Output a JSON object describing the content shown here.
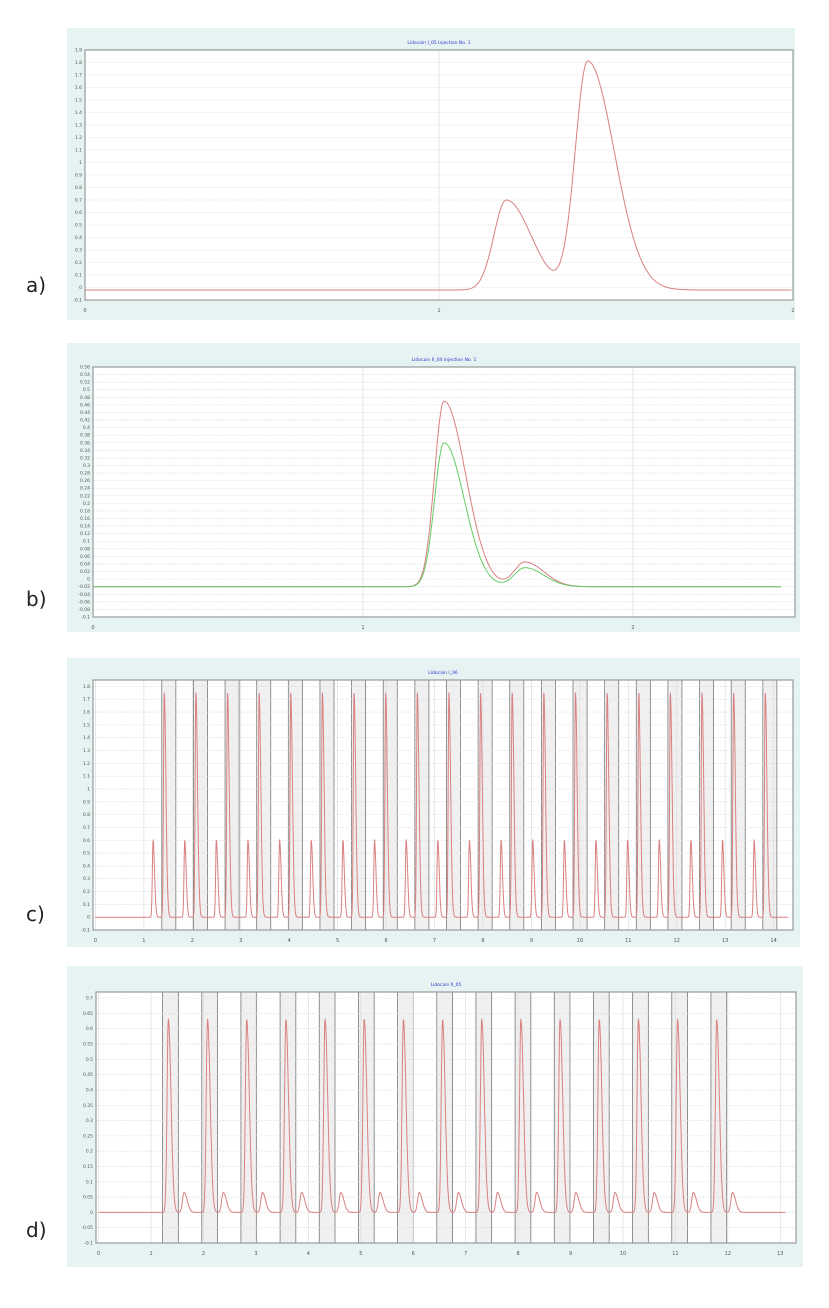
{
  "labels": [
    "a)",
    "b)",
    "c)",
    "d)"
  ],
  "chart_data": [
    {
      "type": "line",
      "title": "Lidocain I_05 Injection No. 1",
      "xlim": [
        0,
        2
      ],
      "ylim": [
        -0.1,
        1.9
      ],
      "xticks": [
        0,
        1,
        2
      ],
      "ytick_step": 0.1,
      "grid": true,
      "series": [
        {
          "name": "trace",
          "color": "#d98080",
          "baseline": -0.02,
          "xrange": [
            0,
            2
          ],
          "peaks": [
            {
              "x": 1.19,
              "height": 0.72,
              "sl": 0.035,
              "sr": 0.07
            },
            {
              "x": 1.42,
              "height": 1.83,
              "sl": 0.035,
              "sr": 0.075
            }
          ]
        }
      ]
    },
    {
      "type": "line",
      "title": "Lidocain II_04 Injection No. 1",
      "xlim": [
        0,
        2.6
      ],
      "ylim": [
        -0.1,
        0.56
      ],
      "xticks": [
        0,
        1,
        2
      ],
      "ytick_step": 0.02,
      "grid": true,
      "series": [
        {
          "name": "trace-red",
          "color": "#d98080",
          "baseline": -0.02,
          "xrange": [
            0,
            2.55
          ],
          "peaks": [
            {
              "x": 1.3,
              "height": 0.49,
              "sl": 0.035,
              "sr": 0.08
            },
            {
              "x": 1.6,
              "height": 0.065,
              "sl": 0.04,
              "sr": 0.07
            }
          ]
        },
        {
          "name": "trace-green",
          "color": "#66cc66",
          "baseline": -0.02,
          "xrange": [
            0,
            2.55
          ],
          "peaks": [
            {
              "x": 1.3,
              "height": 0.38,
              "sl": 0.035,
              "sr": 0.075
            },
            {
              "x": 1.6,
              "height": 0.05,
              "sl": 0.04,
              "sr": 0.07
            }
          ]
        }
      ]
    },
    {
      "type": "line",
      "title": "Lidocain I_06",
      "xlim": [
        -0.05,
        14.4
      ],
      "ylim": [
        -0.1,
        1.85
      ],
      "xticks": [
        0,
        1,
        2,
        3,
        4,
        5,
        6,
        7,
        8,
        9,
        10,
        11,
        12,
        13,
        14
      ],
      "ytick_step": 0.1,
      "ytick_max": 1.8,
      "grid": true,
      "injections": {
        "first": 1.1,
        "interval": 0.653,
        "count": 20,
        "band_width": 0.29,
        "band_offset": 0.27
      },
      "series": [
        {
          "name": "trace",
          "color": "#d98080",
          "baseline": 0,
          "xrange": [
            0,
            14.3
          ],
          "peaks": [
            {
              "dx": 0.09,
              "height": 0.6,
              "sl": 0.015,
              "sr": 0.03
            },
            {
              "dx": 0.32,
              "height": 1.75,
              "sl": 0.015,
              "sr": 0.035
            }
          ]
        }
      ]
    },
    {
      "type": "line",
      "title": "Lidocain II_05",
      "xlim": [
        -0.05,
        13.3
      ],
      "ylim": [
        -0.1,
        0.72
      ],
      "xticks": [
        0,
        1,
        2,
        3,
        4,
        5,
        6,
        7,
        8,
        9,
        10,
        11,
        12,
        13
      ],
      "ytick_step": 0.05,
      "ytick_max": 0.7,
      "grid": true,
      "injections": {
        "first": 1.2,
        "interval": 0.747,
        "count": 15,
        "band_width": 0.3,
        "band_offset": 0.02
      },
      "series": [
        {
          "name": "trace",
          "color": "#d98080",
          "baseline": 0,
          "xrange": [
            0,
            13.1
          ],
          "peaks": [
            {
              "dx": 0.13,
              "height": 0.63,
              "sl": 0.025,
              "sr": 0.05
            },
            {
              "dx": 0.43,
              "height": 0.065,
              "sl": 0.03,
              "sr": 0.06
            }
          ]
        }
      ]
    }
  ]
}
